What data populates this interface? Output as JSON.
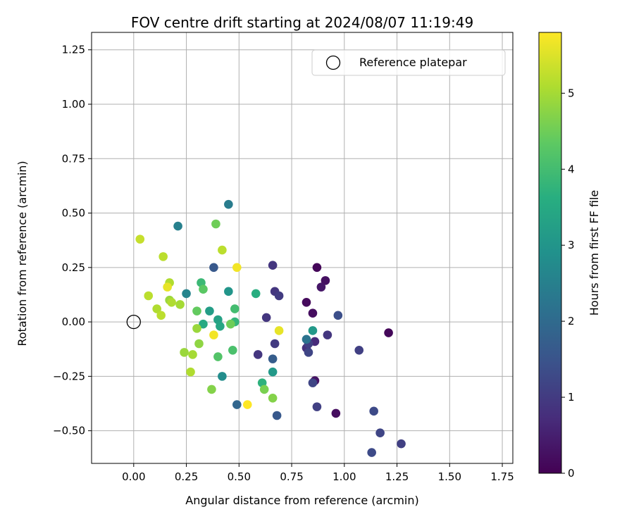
{
  "chart_data": {
    "type": "scatter",
    "title": "FOV centre drift starting at 2024/08/07 11:19:49",
    "xlabel": "Angular distance from reference (arcmin)",
    "ylabel": "Rotation from reference (arcmin)",
    "xlim": [
      -0.2,
      1.8
    ],
    "ylim": [
      -0.65,
      1.33
    ],
    "xticks": [
      0.0,
      0.25,
      0.5,
      0.75,
      1.0,
      1.25,
      1.5,
      1.75
    ],
    "xtick_labels": [
      "0.00",
      "0.25",
      "0.50",
      "0.75",
      "1.00",
      "1.25",
      "1.50",
      "1.75"
    ],
    "yticks": [
      -0.5,
      -0.25,
      0.0,
      0.25,
      0.5,
      0.75,
      1.0,
      1.25
    ],
    "ytick_labels": [
      "−0.50",
      "−0.25",
      "0.00",
      "0.25",
      "0.50",
      "0.75",
      "1.00",
      "1.25"
    ],
    "grid": true,
    "legend": {
      "placement": "top-right",
      "entries": [
        "Reference platepar"
      ]
    },
    "reference_point": {
      "x": 0.0,
      "y": 0.0,
      "label": "Reference platepar"
    },
    "colorbar": {
      "label": "Hours from first FF file",
      "min": 0,
      "max": 5.8,
      "ticks": [
        0,
        1,
        2,
        3,
        4,
        5
      ],
      "tick_labels": [
        "0",
        "1",
        "2",
        "3",
        "4",
        "5"
      ],
      "colormap": "viridis"
    },
    "points": [
      {
        "x": 0.87,
        "y": 0.25,
        "h": 0.1
      },
      {
        "x": 0.91,
        "y": 0.19,
        "h": 0.25
      },
      {
        "x": 0.89,
        "y": 0.16,
        "h": 0.35
      },
      {
        "x": 0.82,
        "y": 0.09,
        "h": 0.15
      },
      {
        "x": 0.85,
        "y": 0.04,
        "h": 0.2
      },
      {
        "x": 1.21,
        "y": -0.05,
        "h": 0.1
      },
      {
        "x": 0.96,
        "y": -0.42,
        "h": 0.2
      },
      {
        "x": 0.86,
        "y": -0.27,
        "h": 0.3
      },
      {
        "x": 0.86,
        "y": -0.09,
        "h": 0.7
      },
      {
        "x": 0.92,
        "y": -0.06,
        "h": 0.9
      },
      {
        "x": 0.66,
        "y": 0.26,
        "h": 0.9
      },
      {
        "x": 0.67,
        "y": 0.14,
        "h": 0.9
      },
      {
        "x": 0.69,
        "y": 0.12,
        "h": 1.0
      },
      {
        "x": 0.63,
        "y": 0.02,
        "h": 0.9
      },
      {
        "x": 0.59,
        "y": -0.15,
        "h": 0.9
      },
      {
        "x": 0.67,
        "y": -0.1,
        "h": 1.0
      },
      {
        "x": 0.82,
        "y": -0.12,
        "h": 0.8
      },
      {
        "x": 0.83,
        "y": -0.1,
        "h": 1.1
      },
      {
        "x": 0.83,
        "y": -0.14,
        "h": 1.2
      },
      {
        "x": 0.85,
        "y": -0.28,
        "h": 1.2
      },
      {
        "x": 0.87,
        "y": -0.39,
        "h": 1.1
      },
      {
        "x": 0.97,
        "y": 0.03,
        "h": 1.4
      },
      {
        "x": 1.07,
        "y": -0.13,
        "h": 1.1
      },
      {
        "x": 1.14,
        "y": -0.41,
        "h": 1.3
      },
      {
        "x": 1.17,
        "y": -0.51,
        "h": 1.2
      },
      {
        "x": 1.27,
        "y": -0.56,
        "h": 1.1
      },
      {
        "x": 1.13,
        "y": -0.6,
        "h": 1.3
      },
      {
        "x": 0.68,
        "y": -0.43,
        "h": 1.6
      },
      {
        "x": 0.66,
        "y": -0.17,
        "h": 1.7
      },
      {
        "x": 0.49,
        "y": -0.38,
        "h": 1.9
      },
      {
        "x": 0.38,
        "y": 0.25,
        "h": 1.6
      },
      {
        "x": 0.82,
        "y": -0.08,
        "h": 2.2
      },
      {
        "x": 0.45,
        "y": 0.54,
        "h": 2.4
      },
      {
        "x": 0.21,
        "y": 0.44,
        "h": 2.5
      },
      {
        "x": 0.25,
        "y": 0.13,
        "h": 2.6
      },
      {
        "x": 0.42,
        "y": -0.25,
        "h": 2.8
      },
      {
        "x": 0.45,
        "y": 0.14,
        "h": 3.0
      },
      {
        "x": 0.85,
        "y": -0.04,
        "h": 3.1
      },
      {
        "x": 0.66,
        "y": -0.23,
        "h": 3.1
      },
      {
        "x": 0.36,
        "y": 0.05,
        "h": 3.2
      },
      {
        "x": 0.4,
        "y": 0.01,
        "h": 3.3
      },
      {
        "x": 0.41,
        "y": -0.02,
        "h": 3.4
      },
      {
        "x": 0.33,
        "y": -0.01,
        "h": 3.5
      },
      {
        "x": 0.58,
        "y": 0.13,
        "h": 3.6
      },
      {
        "x": 0.61,
        "y": -0.28,
        "h": 3.7
      },
      {
        "x": 0.48,
        "y": 0.0,
        "h": 3.8
      },
      {
        "x": 0.32,
        "y": 0.18,
        "h": 3.9
      },
      {
        "x": 0.48,
        "y": 0.06,
        "h": 4.0
      },
      {
        "x": 0.47,
        "y": -0.13,
        "h": 4.1
      },
      {
        "x": 0.4,
        "y": -0.16,
        "h": 4.2
      },
      {
        "x": 0.33,
        "y": 0.15,
        "h": 4.3
      },
      {
        "x": 0.3,
        "y": 0.05,
        "h": 4.4
      },
      {
        "x": 0.46,
        "y": -0.01,
        "h": 4.5
      },
      {
        "x": 0.39,
        "y": 0.45,
        "h": 4.5
      },
      {
        "x": 0.62,
        "y": -0.31,
        "h": 4.6
      },
      {
        "x": 0.66,
        "y": -0.35,
        "h": 4.7
      },
      {
        "x": 0.37,
        "y": -0.31,
        "h": 4.7
      },
      {
        "x": 0.31,
        "y": -0.1,
        "h": 4.8
      },
      {
        "x": 0.3,
        "y": -0.03,
        "h": 4.9
      },
      {
        "x": 0.24,
        "y": -0.14,
        "h": 4.9
      },
      {
        "x": 0.28,
        "y": -0.15,
        "h": 5.0
      },
      {
        "x": 0.17,
        "y": 0.1,
        "h": 4.9
      },
      {
        "x": 0.18,
        "y": 0.09,
        "h": 5.1
      },
      {
        "x": 0.22,
        "y": 0.08,
        "h": 5.0
      },
      {
        "x": 0.27,
        "y": -0.23,
        "h": 5.1
      },
      {
        "x": 0.42,
        "y": 0.33,
        "h": 5.2
      },
      {
        "x": 0.17,
        "y": 0.18,
        "h": 5.1
      },
      {
        "x": 0.14,
        "y": 0.3,
        "h": 5.2
      },
      {
        "x": 0.07,
        "y": 0.12,
        "h": 5.2
      },
      {
        "x": 0.11,
        "y": 0.06,
        "h": 5.1
      },
      {
        "x": 0.13,
        "y": 0.03,
        "h": 5.2
      },
      {
        "x": 0.03,
        "y": 0.38,
        "h": 5.3
      },
      {
        "x": 0.16,
        "y": 0.16,
        "h": 5.6
      },
      {
        "x": 0.38,
        "y": -0.06,
        "h": 5.7
      },
      {
        "x": 0.49,
        "y": 0.25,
        "h": 5.7
      },
      {
        "x": 0.69,
        "y": -0.04,
        "h": 5.6
      },
      {
        "x": 0.54,
        "y": -0.38,
        "h": 5.8
      }
    ]
  }
}
